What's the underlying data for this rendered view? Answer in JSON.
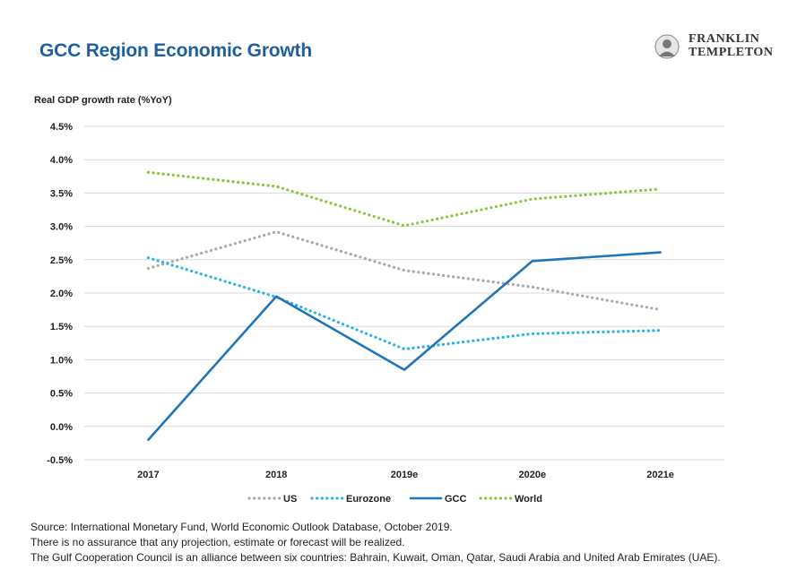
{
  "header": {
    "title": "GCC Region Economic Growth"
  },
  "logo": {
    "line1": "FRANKLIN",
    "line2": "TEMPLETON"
  },
  "chart_data": {
    "type": "line",
    "title": "GCC Region Economic Growth",
    "ylabel": "Real GDP growth rate (%YoY)",
    "xlabel": "",
    "categories": [
      "2017",
      "2018",
      "2019e",
      "2020e",
      "2021e"
    ],
    "ylim": [
      -0.5,
      4.5
    ],
    "yticks": [
      "4.5%",
      "4.0%",
      "3.5%",
      "3.0%",
      "2.5%",
      "2.0%",
      "1.5%",
      "1.0%",
      "0.5%",
      "0.0%",
      "-0.5%"
    ],
    "ytick_values": [
      4.5,
      4.0,
      3.5,
      3.0,
      2.5,
      2.0,
      1.5,
      1.0,
      0.5,
      0.0,
      -0.5
    ],
    "grid": true,
    "legend_position": "bottom",
    "series": [
      {
        "name": "US",
        "values": [
          2.37,
          2.92,
          2.34,
          2.09,
          1.75
        ],
        "color": "#aaaaaa",
        "style": "dotted"
      },
      {
        "name": "Eurozone",
        "values": [
          2.53,
          1.94,
          1.16,
          1.39,
          1.44
        ],
        "color": "#2bb3e6",
        "style": "dotted"
      },
      {
        "name": "GCC",
        "values": [
          -0.2,
          1.95,
          0.85,
          2.48,
          2.61
        ],
        "color": "#1f75b9",
        "style": "solid"
      },
      {
        "name": "World",
        "values": [
          3.81,
          3.6,
          3.01,
          3.41,
          3.56
        ],
        "color": "#8cc63f",
        "style": "dotted"
      }
    ]
  },
  "footer": {
    "source": "Source: International Monetary Fund, World Economic Outlook Database, October 2019.",
    "disclaimer": "There is no assurance that any projection, estimate or forecast will be realized.",
    "note": "The Gulf Cooperation Council is an alliance between six countries: Bahrain, Kuwait, Oman, Qatar, Saudi Arabia and United Arab Emirates (UAE)."
  }
}
